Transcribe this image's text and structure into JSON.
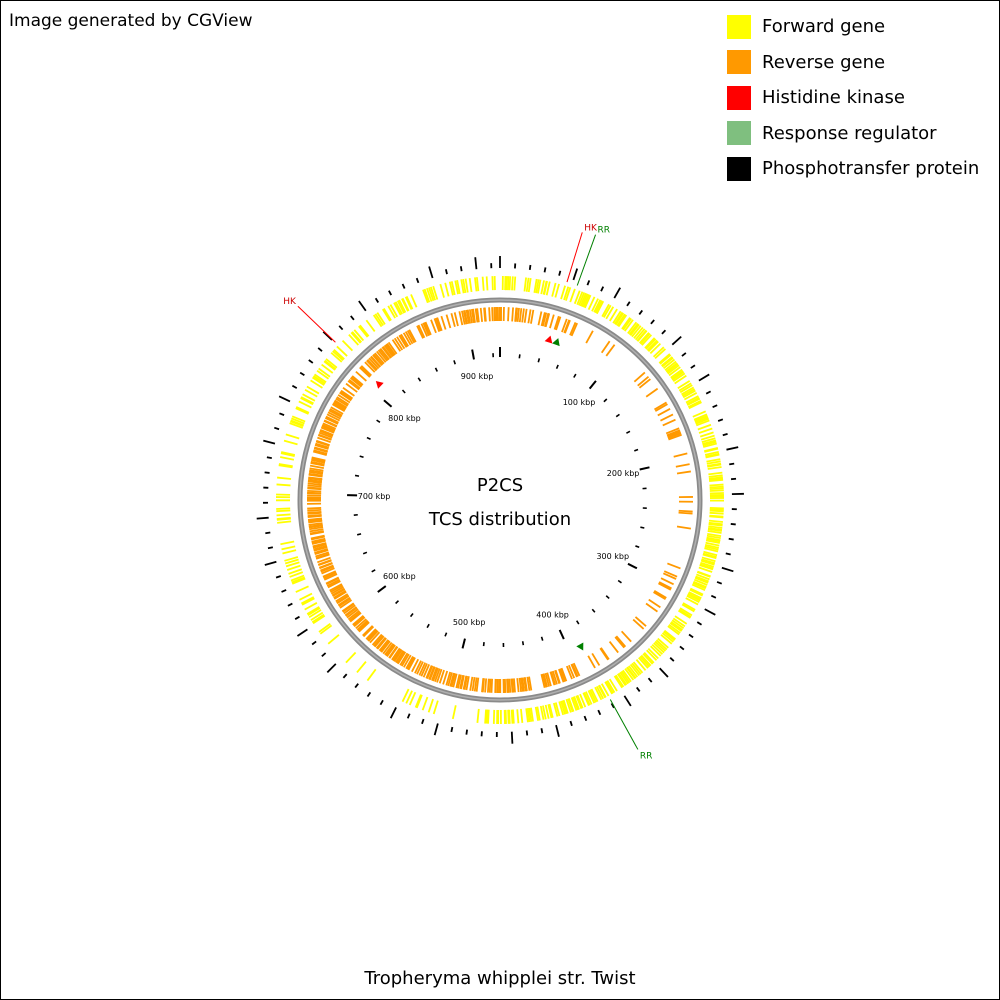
{
  "header": {
    "generator_text": "Image generated by CGView"
  },
  "legend": {
    "items": [
      {
        "label": "Forward gene",
        "color": "#ffff00"
      },
      {
        "label": "Reverse gene",
        "color": "#ff9900"
      },
      {
        "label": "Histidine kinase",
        "color": "#ff0000"
      },
      {
        "label": "Response regulator",
        "color": "#7fbf7f"
      },
      {
        "label": "Phosphotransfer protein",
        "color": "#000000"
      }
    ]
  },
  "map": {
    "center_title": "P2CS",
    "center_subtitle": "TCS distribution",
    "genome_length_kbp": 927,
    "tick_labels": [
      {
        "kbp": 100,
        "label": "100 kbp"
      },
      {
        "kbp": 200,
        "label": "200 kbp"
      },
      {
        "kbp": 300,
        "label": "300 kbp"
      },
      {
        "kbp": 400,
        "label": "400 kbp"
      },
      {
        "kbp": 500,
        "label": "500 kbp"
      },
      {
        "kbp": 600,
        "label": "600 kbp"
      },
      {
        "kbp": 700,
        "label": "700 kbp"
      },
      {
        "kbp": 800,
        "label": "800 kbp"
      },
      {
        "kbp": 900,
        "label": "900 kbp"
      }
    ],
    "features": [
      {
        "type": "HK",
        "label": "HK",
        "kbp": 44,
        "color": "#ff0000",
        "label_color": "#cc0000"
      },
      {
        "type": "RR",
        "label": "RR",
        "kbp": 51,
        "color": "#008000",
        "label_color": "#008000"
      },
      {
        "type": "HK",
        "label": "HK",
        "kbp": 808,
        "color": "#ff0000",
        "label_color": "#cc0000"
      },
      {
        "type": "RR",
        "label": "RR",
        "kbp": 389,
        "color": "#008000",
        "label_color": "#008000"
      }
    ]
  },
  "footer": {
    "organism": "Tropheryma whipplei str. Twist"
  }
}
